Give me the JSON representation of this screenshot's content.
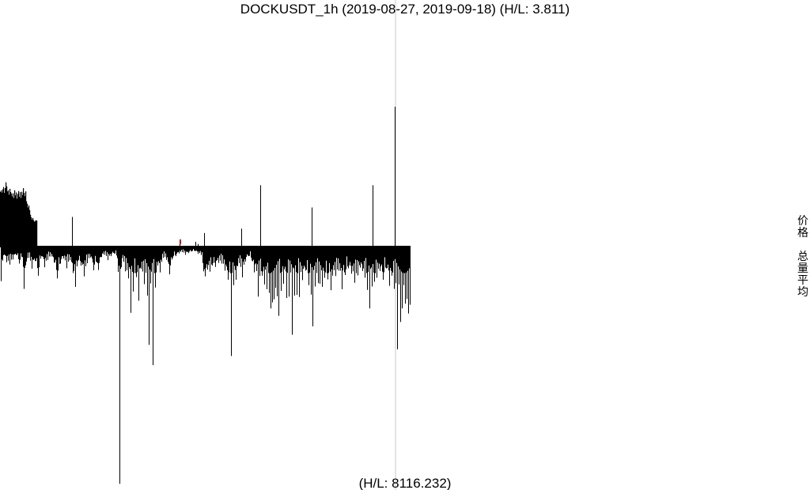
{
  "chart_data": {
    "type": "bar",
    "title": "DOCKUSDT_1h (2019-08-27, 2019-09-18) (H/L: 3.811)",
    "footer_label": "(H/L: 8116.232)",
    "side_labels": [
      "价格",
      "总量平均"
    ],
    "colors": {
      "bars": "#000000",
      "cursor": "#c8c8c8",
      "accent": "#cc0000"
    },
    "ratio_max": 3.811,
    "volume_max": 8116.232,
    "upper_series": {
      "name": "",
      "notes": "hourly high/low ratio bars above the baseline (index, value)",
      "points": [
        [
          0,
          1.48
        ],
        [
          1,
          1.52
        ],
        [
          2,
          1.46
        ],
        [
          3,
          1.55
        ],
        [
          4,
          1.61
        ],
        [
          5,
          1.45
        ],
        [
          6,
          1.58
        ],
        [
          7,
          1.74
        ],
        [
          8,
          1.63
        ],
        [
          9,
          1.49
        ],
        [
          10,
          1.52
        ],
        [
          11,
          1.4
        ],
        [
          12,
          1.56
        ],
        [
          13,
          1.47
        ],
        [
          14,
          1.43
        ],
        [
          15,
          1.35
        ],
        [
          16,
          1.44
        ],
        [
          17,
          1.31
        ],
        [
          18,
          1.52
        ],
        [
          19,
          1.38
        ],
        [
          20,
          1.46
        ],
        [
          21,
          1.29
        ],
        [
          22,
          1.42
        ],
        [
          23,
          1.5
        ],
        [
          24,
          1.34
        ],
        [
          25,
          1.47
        ],
        [
          26,
          1.31
        ],
        [
          27,
          1.48
        ],
        [
          28,
          1.39
        ],
        [
          29,
          1.58
        ],
        [
          30,
          1.45
        ],
        [
          31,
          1.36
        ],
        [
          32,
          1.49
        ],
        [
          33,
          1.22
        ],
        [
          34,
          1.15
        ],
        [
          35,
          1.05
        ],
        [
          36,
          1.1
        ],
        [
          37,
          0.98
        ],
        [
          38,
          0.85
        ],
        [
          39,
          0.78
        ],
        [
          40,
          0.72
        ],
        [
          41,
          0.76
        ],
        [
          42,
          0.7
        ],
        [
          43,
          0.66
        ],
        [
          44,
          0.68
        ],
        [
          45,
          0.7
        ],
        [
          46,
          0.69
        ],
        [
          91,
          0.79
        ],
        [
          227,
          0.1
        ],
        [
          247,
          0.11
        ],
        [
          250,
          0.05
        ],
        [
          258,
          0.35
        ],
        [
          305,
          0.47
        ],
        [
          329,
          1.66
        ],
        [
          394,
          1.05
        ],
        [
          471,
          1.66
        ],
        [
          499,
          3.811
        ]
      ]
    },
    "lower_series": {
      "name": "",
      "notes": "hourly volume bars below the baseline (index, value)",
      "points": [
        [
          1,
          1000
        ],
        [
          4,
          230
        ],
        [
          8,
          440
        ],
        [
          12,
          510
        ],
        [
          16,
          360
        ],
        [
          20,
          220
        ],
        [
          24,
          480
        ],
        [
          28,
          290
        ],
        [
          30,
          1230
        ],
        [
          33,
          420
        ],
        [
          36,
          310
        ],
        [
          40,
          630
        ],
        [
          44,
          400
        ],
        [
          48,
          840
        ],
        [
          52,
          260
        ],
        [
          56,
          590
        ],
        [
          60,
          370
        ],
        [
          64,
          270
        ],
        [
          68,
          450
        ],
        [
          72,
          920
        ],
        [
          76,
          480
        ],
        [
          80,
          330
        ],
        [
          84,
          620
        ],
        [
          88,
          380
        ],
        [
          92,
          760
        ],
        [
          95,
          1170
        ],
        [
          98,
          410
        ],
        [
          102,
          540
        ],
        [
          106,
          860
        ],
        [
          110,
          470
        ],
        [
          114,
          300
        ],
        [
          118,
          680
        ],
        [
          122,
          440
        ],
        [
          124,
          670
        ],
        [
          128,
          290
        ],
        [
          132,
          220
        ],
        [
          136,
          380
        ],
        [
          140,
          260
        ],
        [
          144,
          180
        ],
        [
          148,
          320
        ],
        [
          151,
          7010
        ],
        [
          154,
          320
        ],
        [
          158,
          710
        ],
        [
          162,
          920
        ],
        [
          165,
          1940
        ],
        [
          168,
          1310
        ],
        [
          172,
          880
        ],
        [
          175,
          1580
        ],
        [
          178,
          640
        ],
        [
          182,
          1090
        ],
        [
          186,
          1430
        ],
        [
          188,
          2890
        ],
        [
          190,
          1070
        ],
        [
          193,
          3490
        ],
        [
          196,
          1190
        ],
        [
          199,
          540
        ],
        [
          202,
          740
        ],
        [
          206,
          310
        ],
        [
          210,
          370
        ],
        [
          214,
          800
        ],
        [
          218,
          310
        ],
        [
          222,
          260
        ],
        [
          226,
          180
        ],
        [
          230,
          140
        ],
        [
          234,
          220
        ],
        [
          238,
          170
        ],
        [
          242,
          120
        ],
        [
          246,
          110
        ],
        [
          250,
          190
        ],
        [
          254,
          230
        ],
        [
          257,
          710
        ],
        [
          259,
          860
        ],
        [
          262,
          660
        ],
        [
          265,
          720
        ],
        [
          268,
          540
        ],
        [
          272,
          580
        ],
        [
          276,
          460
        ],
        [
          280,
          480
        ],
        [
          284,
          690
        ],
        [
          288,
          960
        ],
        [
          292,
          3220
        ],
        [
          295,
          1120
        ],
        [
          298,
          960
        ],
        [
          302,
          470
        ],
        [
          306,
          890
        ],
        [
          310,
          420
        ],
        [
          314,
          260
        ],
        [
          318,
          390
        ],
        [
          321,
          740
        ],
        [
          324,
          700
        ],
        [
          326,
          1460
        ],
        [
          328,
          850
        ],
        [
          331,
          840
        ],
        [
          334,
          1100
        ],
        [
          337,
          1240
        ],
        [
          340,
          1350
        ],
        [
          342,
          1810
        ],
        [
          344,
          1630
        ],
        [
          346,
          1540
        ],
        [
          348,
          1200
        ],
        [
          350,
          1450
        ],
        [
          352,
          2030
        ],
        [
          355,
          1290
        ],
        [
          358,
          1080
        ],
        [
          362,
          1500
        ],
        [
          365,
          1460
        ],
        [
          369,
          2590
        ],
        [
          372,
          1430
        ],
        [
          375,
          1410
        ],
        [
          378,
          1470
        ],
        [
          382,
          970
        ],
        [
          386,
          690
        ],
        [
          390,
          1120
        ],
        [
          393,
          1400
        ],
        [
          395,
          2340
        ],
        [
          398,
          1160
        ],
        [
          402,
          1060
        ],
        [
          404,
          1080
        ],
        [
          407,
          1170
        ],
        [
          410,
          900
        ],
        [
          414,
          950
        ],
        [
          418,
          1270
        ],
        [
          420,
          840
        ],
        [
          424,
          850
        ],
        [
          428,
          690
        ],
        [
          432,
          1240
        ],
        [
          436,
          820
        ],
        [
          440,
          620
        ],
        [
          444,
          780
        ],
        [
          448,
          1050
        ],
        [
          452,
          830
        ],
        [
          455,
          600
        ],
        [
          458,
          700
        ],
        [
          461,
          900
        ],
        [
          464,
          1260
        ],
        [
          467,
          1810
        ],
        [
          470,
          1160
        ],
        [
          473,
          1020
        ],
        [
          476,
          900
        ],
        [
          480,
          700
        ],
        [
          484,
          960
        ],
        [
          488,
          620
        ],
        [
          492,
          1140
        ],
        [
          495,
          840
        ],
        [
          498,
          1230
        ],
        [
          500,
          1060
        ],
        [
          502,
          3020
        ],
        [
          504,
          1100
        ],
        [
          506,
          2210
        ],
        [
          508,
          1810
        ],
        [
          510,
          1120
        ],
        [
          512,
          1670
        ],
        [
          514,
          1530
        ],
        [
          516,
          1960
        ],
        [
          518,
          1700
        ]
      ]
    }
  }
}
